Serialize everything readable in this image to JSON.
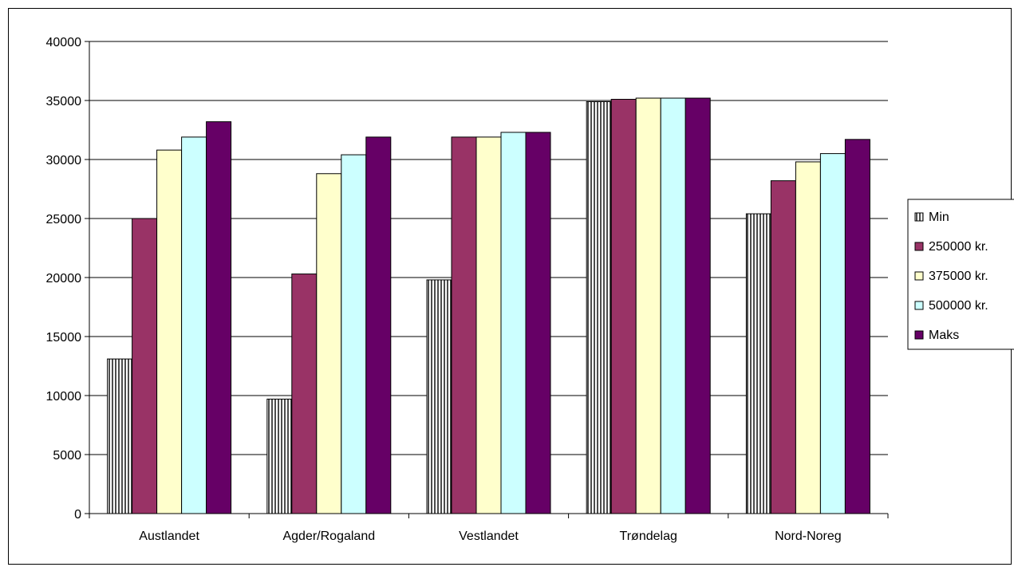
{
  "chart_data": {
    "type": "bar",
    "categories": [
      "Austlandet",
      "Agder/Rogaland",
      "Vestlandet",
      "Trøndelag",
      "Nord-Noreg"
    ],
    "series": [
      {
        "name": "Min",
        "values": [
          13100,
          9700,
          19800,
          34900,
          25400
        ],
        "color": "#ffffff",
        "pattern": "vertical-stripes"
      },
      {
        "name": "250000 kr.",
        "values": [
          25000,
          20300,
          31900,
          35100,
          28200
        ],
        "color": "#993366"
      },
      {
        "name": "375000 kr.",
        "values": [
          30800,
          28800,
          31900,
          35200,
          29800
        ],
        "color": "#ffffcc"
      },
      {
        "name": "500000 kr.",
        "values": [
          31900,
          30400,
          32300,
          35200,
          30500
        ],
        "color": "#ccffff"
      },
      {
        "name": "Maks",
        "values": [
          33200,
          31900,
          32300,
          35200,
          31700
        ],
        "color": "#660066"
      }
    ],
    "ylim": [
      0,
      40000
    ],
    "yticks": [
      0,
      5000,
      10000,
      15000,
      20000,
      25000,
      30000,
      35000,
      40000
    ],
    "grid": true,
    "legend_position": "right",
    "title": "",
    "xlabel": "",
    "ylabel": ""
  }
}
